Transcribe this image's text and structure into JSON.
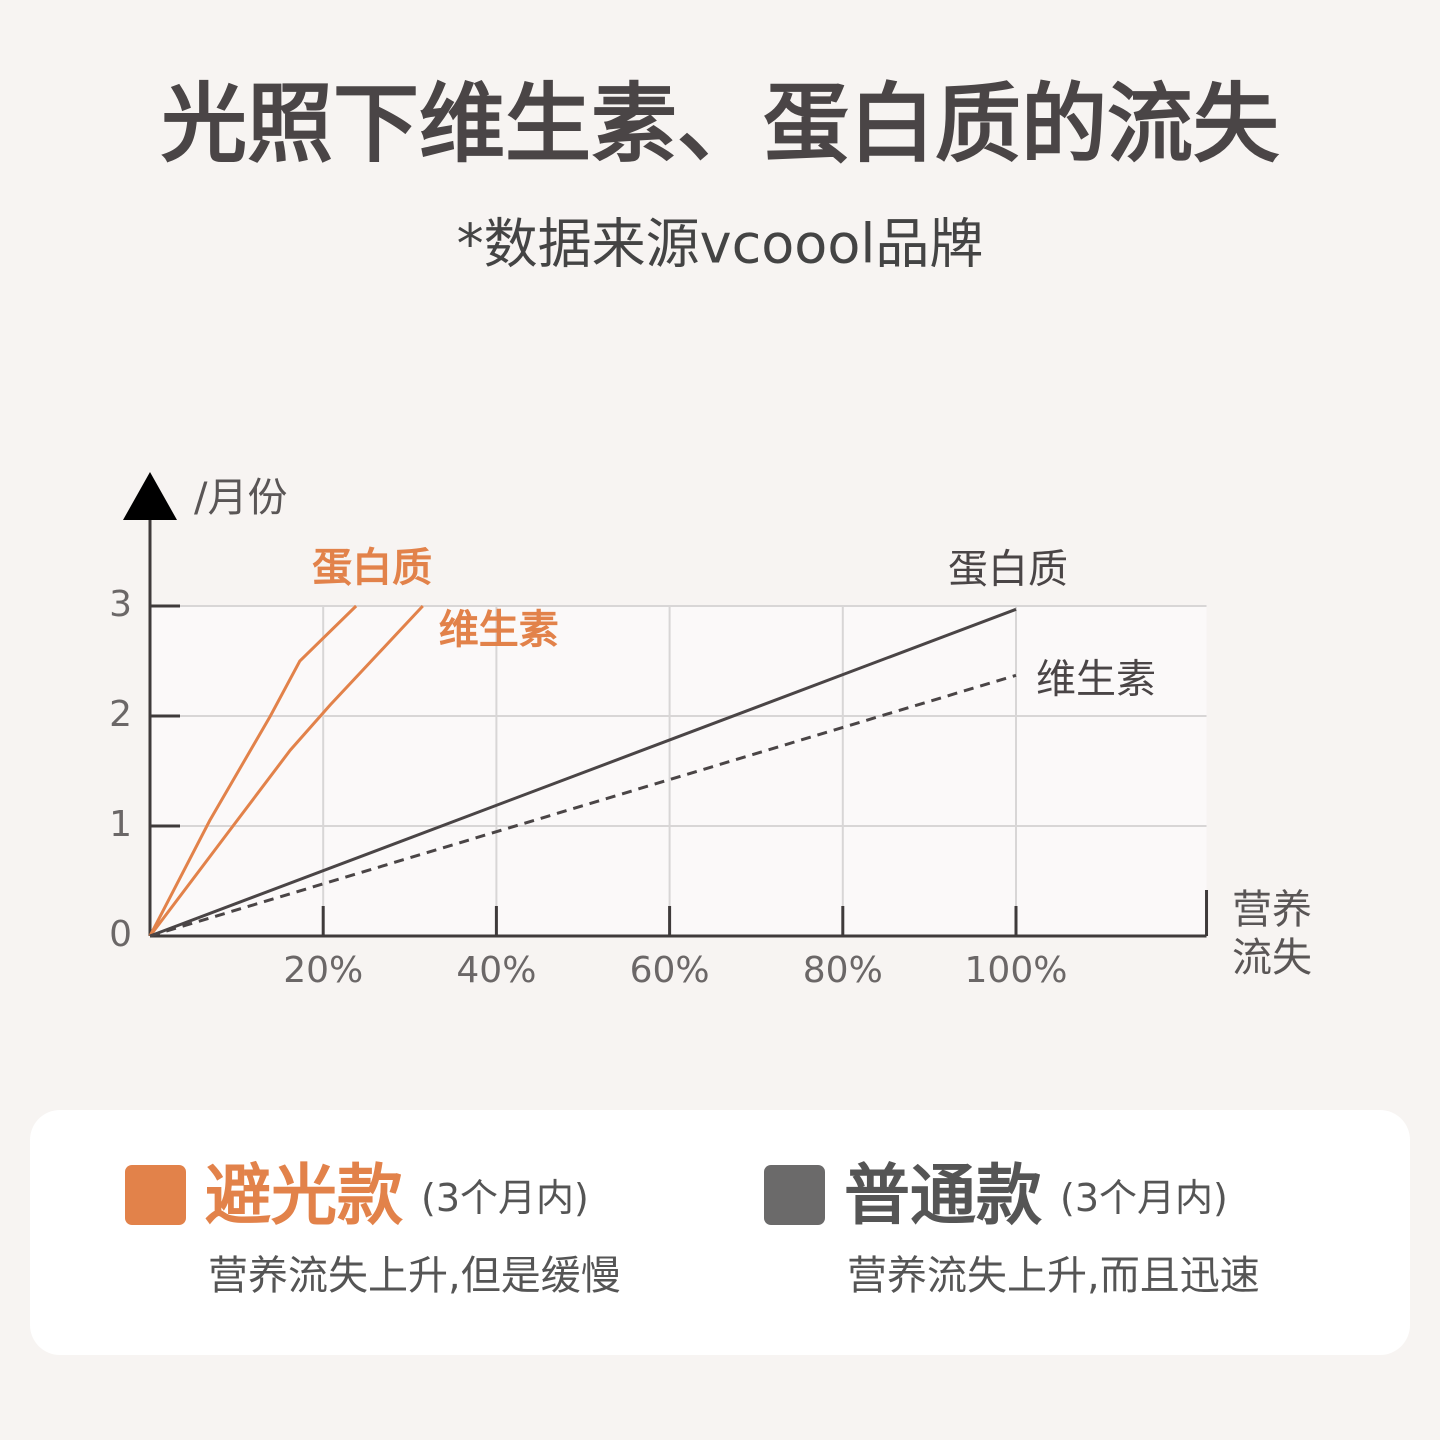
{
  "title": "光照下维生素、蛋白质的流失",
  "subtitle": "*数据来源vcoool品牌",
  "chart_data": {
    "type": "line",
    "y_label": "/月份",
    "x_label": "营养流失",
    "xlim": [
      0,
      122
    ],
    "ylim": [
      0,
      4
    ],
    "xticks": [
      {
        "value": 20,
        "label": "20%"
      },
      {
        "value": 40,
        "label": "40%"
      },
      {
        "value": 60,
        "label": "60%"
      },
      {
        "value": 80,
        "label": "80%"
      },
      {
        "value": 100,
        "label": "100%"
      }
    ],
    "yticks": [
      0,
      1,
      2,
      3
    ],
    "grid": true,
    "series": [
      {
        "name": "蛋白质",
        "color": "#e2824a",
        "dashed": false,
        "x": [
          0,
          6.9,
          13.9,
          17.3,
          23.8
        ],
        "values": [
          0,
          1.05,
          2.0,
          2.5,
          3.0
        ]
      },
      {
        "name": "维生素",
        "color": "#e2824a",
        "dashed": false,
        "x": [
          0,
          9.2,
          16.2,
          20.8,
          31.5
        ],
        "values": [
          0,
          0.96,
          1.69,
          2.1,
          3.0
        ]
      },
      {
        "name": "蛋白质",
        "color": "#4a4546",
        "dashed": false,
        "x": [
          0,
          100
        ],
        "values": [
          0,
          2.97
        ]
      },
      {
        "name": "维生素",
        "color": "#4a4546",
        "dashed": true,
        "x": [
          0,
          100
        ],
        "values": [
          0,
          2.37
        ]
      }
    ]
  },
  "legend": [
    {
      "name": "避光款",
      "note": "(3个月内)",
      "description": "营养流失上升,但是缓慢",
      "color": "#e2824a"
    },
    {
      "name": "普通款",
      "note": "(3个月内)",
      "description": "营养流失上升,而且迅速",
      "color": "#6b6a6a"
    }
  ]
}
